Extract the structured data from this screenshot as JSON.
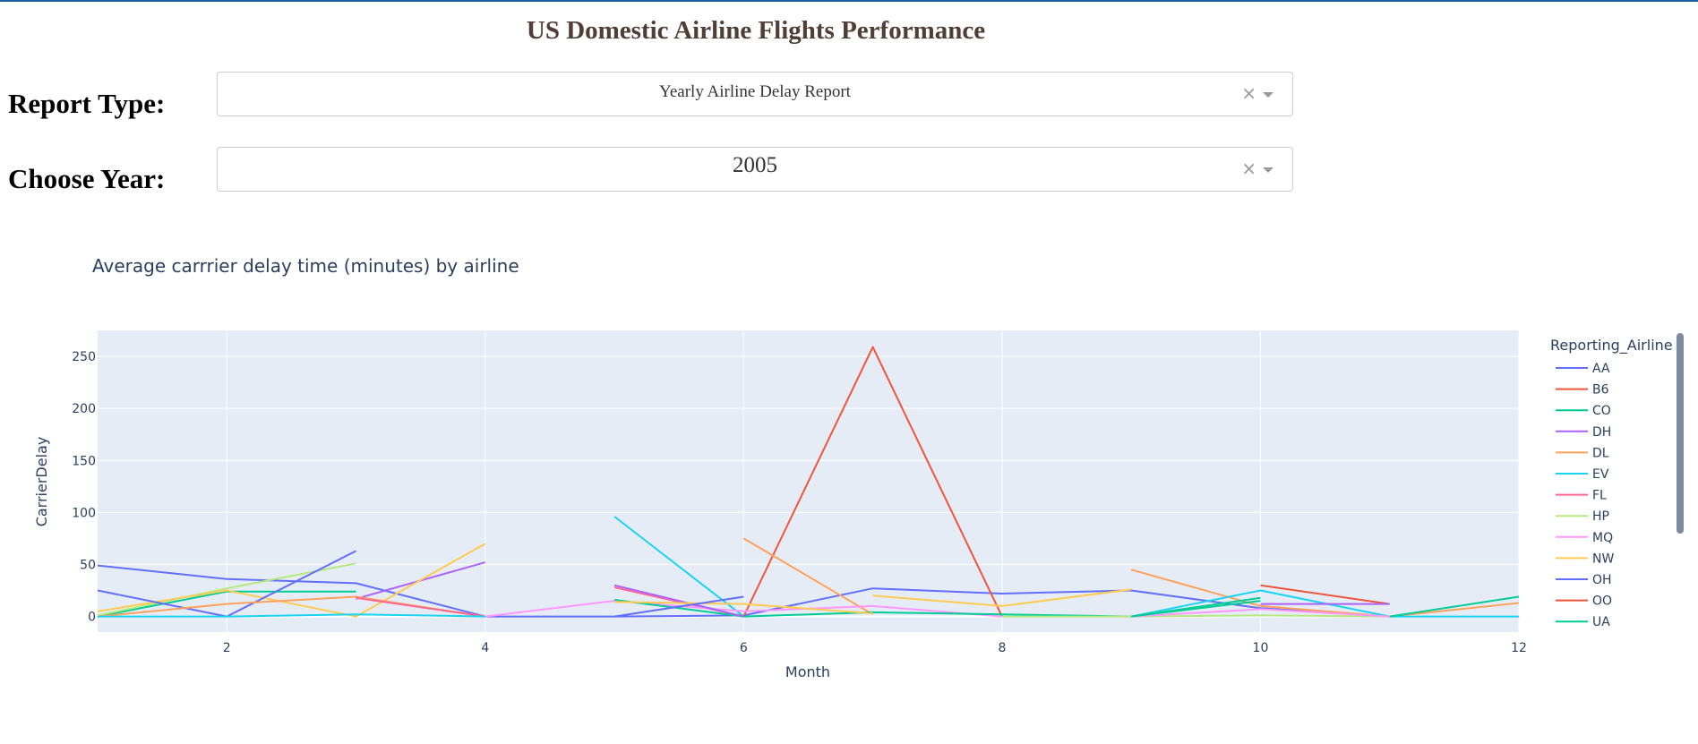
{
  "page": {
    "title": "US Domestic Airline Flights Performance"
  },
  "controls": {
    "report_label": "Report Type:",
    "report_value": "Yearly Airline Delay Report",
    "year_label": "Choose Year:",
    "year_value": "2005",
    "clear_glyph": "×"
  },
  "colors": {
    "accent": "#1a5f9e",
    "title": "#503d36",
    "plot_bg": "#e5ecf6"
  },
  "chart_data": {
    "type": "line",
    "title": "Average carrrier delay time (minutes) by airline",
    "xlabel": "Month",
    "ylabel": "CarrierDelay",
    "xlim": [
      1,
      12
    ],
    "ylim": [
      -15,
      275
    ],
    "xticks": [
      2,
      4,
      6,
      8,
      10,
      12
    ],
    "yticks": [
      0,
      50,
      100,
      150,
      200,
      250
    ],
    "grid": true,
    "legend_title": "Reporting_Airline",
    "legend_position": "right",
    "series": [
      {
        "name": "AA",
        "color": "#636efa",
        "points": [
          [
            1,
            49
          ],
          [
            2,
            36
          ],
          [
            3,
            32
          ],
          [
            4,
            0
          ],
          [
            5,
            0
          ],
          [
            6,
            1
          ],
          [
            7,
            27
          ],
          [
            8,
            22
          ],
          [
            9,
            25
          ],
          [
            10,
            8
          ],
          [
            11,
            0
          ]
        ]
      },
      {
        "name": "B6",
        "color": "#ef553b",
        "points": [
          [
            6,
            0
          ],
          [
            7,
            259
          ],
          [
            8,
            0
          ]
        ]
      },
      {
        "name": "CO",
        "color": "#00cc96",
        "points": [
          [
            1,
            0
          ],
          [
            2,
            24
          ],
          [
            3,
            24
          ]
        ]
      },
      {
        "name": "DH",
        "color": "#ab63fa",
        "points": [
          [
            3,
            17
          ],
          [
            4,
            52
          ]
        ]
      },
      {
        "name": "DL",
        "color": "#ffa15a",
        "points": [
          [
            6,
            75
          ],
          [
            7,
            2
          ]
        ]
      },
      {
        "name": "DL",
        "color": "#ffa15a",
        "points": [
          [
            9,
            45
          ],
          [
            10,
            10
          ],
          [
            11,
            0
          ],
          [
            12,
            13
          ]
        ]
      },
      {
        "name": "EV",
        "color": "#19d3f3",
        "points": [
          [
            5,
            96
          ],
          [
            6,
            0
          ]
        ]
      },
      {
        "name": "EV",
        "color": "#19d3f3",
        "points": [
          [
            9,
            0
          ],
          [
            10,
            25
          ],
          [
            11,
            0
          ],
          [
            12,
            0
          ]
        ]
      },
      {
        "name": "FL",
        "color": "#ff6692",
        "points": [
          [
            5,
            28
          ],
          [
            6,
            0
          ]
        ]
      },
      {
        "name": "HP",
        "color": "#b6e880",
        "points": [
          [
            1,
            1
          ],
          [
            2,
            27
          ],
          [
            3,
            51
          ]
        ]
      },
      {
        "name": "MQ",
        "color": "#ff97ff",
        "points": [
          [
            4,
            0
          ],
          [
            5,
            15
          ],
          [
            6,
            5
          ],
          [
            7,
            10
          ],
          [
            8,
            0
          ]
        ]
      },
      {
        "name": "NW",
        "color": "#fecb52",
        "points": [
          [
            1,
            5
          ],
          [
            2,
            25
          ],
          [
            3,
            0
          ],
          [
            4,
            70
          ]
        ]
      },
      {
        "name": "NW",
        "color": "#fecb52",
        "points": [
          [
            7,
            20
          ],
          [
            8,
            10
          ],
          [
            9,
            26
          ]
        ]
      },
      {
        "name": "OH",
        "color": "#636efa",
        "points": [
          [
            1,
            25
          ],
          [
            2,
            0
          ],
          [
            3,
            63
          ]
        ]
      },
      {
        "name": "OO",
        "color": "#ef553b",
        "points": [
          [
            10,
            30
          ],
          [
            11,
            12
          ]
        ]
      },
      {
        "name": "UA",
        "color": "#00cc96",
        "points": [
          [
            5,
            16
          ],
          [
            6,
            0
          ],
          [
            7,
            4
          ],
          [
            8,
            2
          ],
          [
            9,
            0
          ],
          [
            10,
            18
          ]
        ]
      },
      {
        "name": "UA",
        "color": "#00cc96",
        "points": [
          [
            11,
            0
          ],
          [
            12,
            19
          ]
        ]
      },
      {
        "name": "DL",
        "color": "#ffa15a",
        "points": [
          [
            1,
            0
          ],
          [
            2,
            12
          ],
          [
            3,
            19
          ],
          [
            4,
            0
          ]
        ]
      },
      {
        "name": "FL",
        "color": "#ff6692",
        "points": [
          [
            3,
            18
          ],
          [
            4,
            0
          ]
        ]
      },
      {
        "name": "DH",
        "color": "#ab63fa",
        "points": [
          [
            5,
            30
          ],
          [
            6,
            0
          ]
        ]
      },
      {
        "name": "DH",
        "color": "#ab63fa",
        "points": [
          [
            10,
            12
          ],
          [
            11,
            12
          ]
        ]
      },
      {
        "name": "NW",
        "color": "#fecb52",
        "points": [
          [
            5,
            14
          ],
          [
            6,
            12
          ],
          [
            7,
            3
          ]
        ]
      },
      {
        "name": "EV",
        "color": "#19d3f3",
        "points": [
          [
            1,
            0
          ],
          [
            2,
            0
          ],
          [
            3,
            2
          ],
          [
            4,
            0
          ]
        ]
      },
      {
        "name": "HP",
        "color": "#b6e880",
        "points": [
          [
            8,
            0
          ],
          [
            9,
            0
          ],
          [
            10,
            1
          ],
          [
            11,
            0
          ]
        ]
      },
      {
        "name": "MQ",
        "color": "#ff97ff",
        "points": [
          [
            9,
            0
          ],
          [
            10,
            7
          ],
          [
            11,
            0
          ]
        ]
      },
      {
        "name": "OH",
        "color": "#636efa",
        "points": [
          [
            5,
            0
          ],
          [
            6,
            19
          ]
        ]
      },
      {
        "name": "CO",
        "color": "#00cc96",
        "points": [
          [
            9,
            0
          ],
          [
            10,
            15
          ]
        ]
      }
    ],
    "legend": [
      {
        "name": "AA",
        "color": "#636efa"
      },
      {
        "name": "B6",
        "color": "#ef553b"
      },
      {
        "name": "CO",
        "color": "#00cc96"
      },
      {
        "name": "DH",
        "color": "#ab63fa"
      },
      {
        "name": "DL",
        "color": "#ffa15a"
      },
      {
        "name": "EV",
        "color": "#19d3f3"
      },
      {
        "name": "FL",
        "color": "#ff6692"
      },
      {
        "name": "HP",
        "color": "#b6e880"
      },
      {
        "name": "MQ",
        "color": "#ff97ff"
      },
      {
        "name": "NW",
        "color": "#fecb52"
      },
      {
        "name": "OH",
        "color": "#636efa"
      },
      {
        "name": "OO",
        "color": "#ef553b"
      },
      {
        "name": "UA",
        "color": "#00cc96"
      }
    ]
  }
}
